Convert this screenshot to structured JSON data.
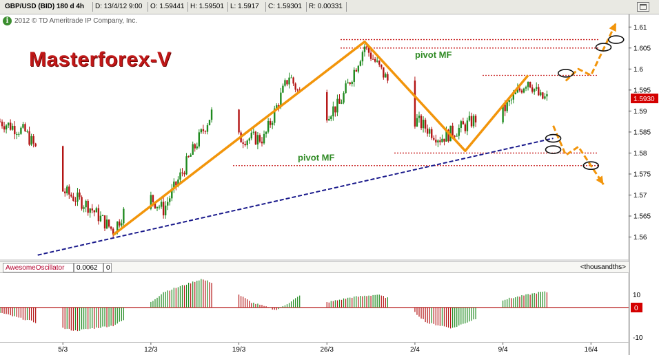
{
  "header": {
    "symbol": "GBP/USD (BID) 180 d 4h",
    "date": "D: 13/4/12 9:00",
    "open": "O: 1.59441",
    "high": "H: 1.59501",
    "low": "L: 1.5917",
    "close": "C: 1.59301",
    "range": "R: 0.00331"
  },
  "copyright": "2012 © TD Ameritrade IP Company, Inc.",
  "brand": "Masterforex-V",
  "oscillator": {
    "name": "AwesomeOscillator",
    "value": "0.0062",
    "param": "0",
    "units": "<thousandths>",
    "yticks": [
      "10",
      "-10"
    ],
    "zero_label": "0"
  },
  "colors": {
    "bull": "#1f8a1f",
    "bear": "#b31414",
    "wave": "#f2950b",
    "trendline": "#1a1a8c",
    "pivot_line": "#c81e1e",
    "pivot_text": "#2f8a24",
    "price_badge": "#d40000"
  },
  "chart_data": [
    {
      "type": "candlestick",
      "series_name": "GBP/USD 4h",
      "x_ticks": [
        "5/3",
        "12/3",
        "19/3",
        "26/3",
        "2/4",
        "9/4",
        "16/4"
      ],
      "y_ticks": [
        1.56,
        1.565,
        1.57,
        1.575,
        1.58,
        1.585,
        1.59,
        1.595,
        1.6,
        1.605,
        1.61
      ],
      "ylim": [
        1.5555,
        1.6125
      ],
      "last_price": "1.5930",
      "wave_path": [
        {
          "date": "2012-03-09",
          "price": 1.5605
        },
        {
          "date": "2012-03-29",
          "price": 1.6065
        },
        {
          "date": "2012-04-06",
          "price": 1.5805
        },
        {
          "date": "2012-04-11",
          "price": 1.5985
        }
      ],
      "pivot_levels": [
        {
          "price": 1.607
        },
        {
          "price": 1.605
        },
        {
          "price": 1.5985
        },
        {
          "price": 1.58
        },
        {
          "price": 1.577
        }
      ],
      "annotations": [
        {
          "text": "pivot MF",
          "price": 1.6035
        },
        {
          "text": "pivot MF",
          "price": 1.579
        }
      ],
      "trendline": [
        {
          "date": "2012-03-03",
          "price": 1.5557
        },
        {
          "date": "2012-04-13",
          "price": 1.5835
        }
      ],
      "forecast_up": [
        {
          "date": "2012-04-14",
          "price": 1.5972
        },
        {
          "date": "2012-04-15",
          "price": 1.6
        },
        {
          "date": "2012-04-16",
          "price": 1.5985
        },
        {
          "date": "2012-04-18",
          "price": 1.611
        }
      ],
      "forecast_down": [
        {
          "date": "2012-04-13",
          "price": 1.5865
        },
        {
          "date": "2012-04-14",
          "price": 1.5795
        },
        {
          "date": "2012-04-15",
          "price": 1.5815
        },
        {
          "date": "2012-04-17",
          "price": 1.5725
        }
      ],
      "marked_points": [
        {
          "date": "2012-04-14",
          "price": 1.599
        },
        {
          "date": "2012-04-17",
          "price": 1.6052
        },
        {
          "date": "2012-04-18",
          "price": 1.607
        },
        {
          "date": "2012-04-13",
          "price": 1.5835
        },
        {
          "date": "2012-04-13",
          "price": 1.5808
        },
        {
          "date": "2012-04-16",
          "price": 1.577
        }
      ],
      "trend_anchors": [
        {
          "date": "2012-02-29",
          "price": 1.5875
        },
        {
          "date": "2012-03-02",
          "price": 1.585
        },
        {
          "date": "2012-03-05",
          "price": 1.571
        },
        {
          "date": "2012-03-07",
          "price": 1.5675
        },
        {
          "date": "2012-03-09",
          "price": 1.5615
        },
        {
          "date": "2012-03-11",
          "price": 1.572
        },
        {
          "date": "2012-03-13",
          "price": 1.5665
        },
        {
          "date": "2012-03-15",
          "price": 1.5785
        },
        {
          "date": "2012-03-17",
          "price": 1.5905
        },
        {
          "date": "2012-03-19",
          "price": 1.5835
        },
        {
          "date": "2012-03-21",
          "price": 1.5835
        },
        {
          "date": "2012-03-23",
          "price": 1.5985
        },
        {
          "date": "2012-03-25",
          "price": 1.5875
        },
        {
          "date": "2012-03-27",
          "price": 1.5915
        },
        {
          "date": "2012-03-29",
          "price": 1.6055
        },
        {
          "date": "2012-03-31",
          "price": 1.5965
        },
        {
          "date": "2012-04-02",
          "price": 1.588
        },
        {
          "date": "2012-04-04",
          "price": 1.5835
        },
        {
          "date": "2012-04-06",
          "price": 1.5865
        },
        {
          "date": "2012-04-07",
          "price": 1.5885
        },
        {
          "date": "2012-04-09",
          "price": 1.59
        },
        {
          "date": "2012-04-11",
          "price": 1.5975
        },
        {
          "date": "2012-04-12",
          "price": 1.593
        }
      ]
    },
    {
      "type": "bar",
      "series_name": "AwesomeOscillator",
      "ylim": [
        -12,
        12
      ],
      "y_ticks": [
        10,
        0,
        -10
      ],
      "ao_anchors": [
        {
          "date": "2012-02-29",
          "value": -2
        },
        {
          "date": "2012-03-03",
          "value": -6
        },
        {
          "date": "2012-03-06",
          "value": -9
        },
        {
          "date": "2012-03-09",
          "value": -7
        },
        {
          "date": "2012-03-11",
          "value": -2
        },
        {
          "date": "2012-03-13",
          "value": 6
        },
        {
          "date": "2012-03-16",
          "value": 11
        },
        {
          "date": "2012-03-18",
          "value": 8
        },
        {
          "date": "2012-03-20",
          "value": 2
        },
        {
          "date": "2012-03-22",
          "value": -1
        },
        {
          "date": "2012-03-24",
          "value": 5
        },
        {
          "date": "2012-03-26",
          "value": 2
        },
        {
          "date": "2012-03-28",
          "value": 4
        },
        {
          "date": "2012-03-30",
          "value": 5
        },
        {
          "date": "2012-04-01",
          "value": 2
        },
        {
          "date": "2012-04-03",
          "value": -6
        },
        {
          "date": "2012-04-05",
          "value": -8
        },
        {
          "date": "2012-04-07",
          "value": -4
        },
        {
          "date": "2012-04-09",
          "value": 3
        },
        {
          "date": "2012-04-12",
          "value": 6
        }
      ]
    }
  ]
}
